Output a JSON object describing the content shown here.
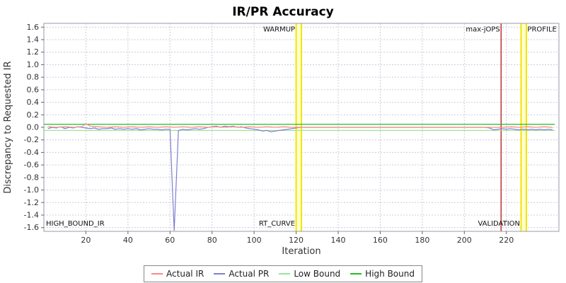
{
  "chart_data": {
    "type": "line",
    "title": "IR/PR Accuracy",
    "xlabel": "Iteration",
    "ylabel": "Discrepancy to Requested IR",
    "xlim": [
      0,
      245
    ],
    "ylim": [
      -1.66,
      1.66
    ],
    "xticks": [
      20,
      40,
      60,
      80,
      100,
      120,
      140,
      160,
      180,
      200,
      220
    ],
    "yticks": [
      1.6,
      1.4,
      1.2,
      1.0,
      0.8,
      0.6,
      0.4,
      0.2,
      0.0,
      -0.2,
      -0.4,
      -0.6,
      -0.8,
      -1.0,
      -1.2,
      -1.4,
      -1.6
    ],
    "grid": true,
    "legend_position": "bottom",
    "colors": {
      "grid": "#ccccdd",
      "plot_border": "#9999aa",
      "band_fill": "#ffffd0",
      "band_edge": "#f2e500",
      "max_jops_line": "#c03030",
      "tick_text": "#333333",
      "annotation_text": "#111111"
    },
    "series": [
      {
        "name": "Actual IR",
        "color": "#ff8888",
        "points": [
          [
            2,
            0.01
          ],
          [
            6,
            0
          ],
          [
            10,
            0.01
          ],
          [
            14,
            0
          ],
          [
            18,
            0.01
          ],
          [
            20,
            0.06
          ],
          [
            22,
            0.02
          ],
          [
            26,
            0.01
          ],
          [
            30,
            0
          ],
          [
            34,
            0.01
          ],
          [
            38,
            0
          ],
          [
            42,
            0.01
          ],
          [
            46,
            0
          ],
          [
            50,
            0.01
          ],
          [
            54,
            0
          ],
          [
            58,
            0.01
          ],
          [
            62,
            0
          ],
          [
            66,
            0.01
          ],
          [
            70,
            0
          ],
          [
            74,
            0.01
          ],
          [
            78,
            0
          ],
          [
            82,
            0.01
          ],
          [
            86,
            0
          ],
          [
            90,
            0.01
          ],
          [
            94,
            0
          ],
          [
            98,
            0.01
          ],
          [
            102,
            0
          ],
          [
            106,
            0.01
          ],
          [
            110,
            0
          ],
          [
            114,
            0.01
          ],
          [
            118,
            0
          ],
          [
            122,
            0
          ],
          [
            130,
            0
          ],
          [
            140,
            0
          ],
          [
            150,
            0
          ],
          [
            160,
            0
          ],
          [
            170,
            0
          ],
          [
            180,
            0
          ],
          [
            190,
            0
          ],
          [
            200,
            0
          ],
          [
            210,
            0
          ],
          [
            218,
            0
          ],
          [
            222,
            0.01
          ],
          [
            226,
            0
          ],
          [
            230,
            0.01
          ],
          [
            234,
            0
          ],
          [
            238,
            0.01
          ],
          [
            242,
            0
          ]
        ]
      },
      {
        "name": "Actual PR",
        "color": "#7f7fd0",
        "points": [
          [
            2,
            -0.02
          ],
          [
            4,
            0
          ],
          [
            6,
            -0.01
          ],
          [
            8,
            0.01
          ],
          [
            10,
            -0.02
          ],
          [
            12,
            0
          ],
          [
            14,
            -0.01
          ],
          [
            16,
            0.01
          ],
          [
            18,
            0
          ],
          [
            20,
            -0.01
          ],
          [
            22,
            -0.02
          ],
          [
            24,
            -0.01
          ],
          [
            26,
            -0.03
          ],
          [
            28,
            -0.02
          ],
          [
            30,
            -0.02
          ],
          [
            32,
            -0.01
          ],
          [
            34,
            -0.03
          ],
          [
            36,
            -0.02
          ],
          [
            38,
            -0.03
          ],
          [
            40,
            -0.02
          ],
          [
            42,
            -0.03
          ],
          [
            44,
            -0.02
          ],
          [
            46,
            -0.04
          ],
          [
            48,
            -0.03
          ],
          [
            50,
            -0.02
          ],
          [
            52,
            -0.03
          ],
          [
            54,
            -0.03
          ],
          [
            56,
            -0.04
          ],
          [
            58,
            -0.03
          ],
          [
            60,
            -0.03
          ],
          [
            62,
            -1.65
          ],
          [
            64,
            -0.05
          ],
          [
            66,
            -0.03
          ],
          [
            68,
            -0.04
          ],
          [
            70,
            -0.03
          ],
          [
            72,
            -0.02
          ],
          [
            74,
            -0.03
          ],
          [
            76,
            -0.02
          ],
          [
            78,
            0
          ],
          [
            80,
            0.01
          ],
          [
            82,
            0.02
          ],
          [
            84,
            0
          ],
          [
            86,
            0.02
          ],
          [
            88,
            0.01
          ],
          [
            90,
            0.02
          ],
          [
            92,
            0
          ],
          [
            94,
            0.01
          ],
          [
            96,
            -0.01
          ],
          [
            98,
            -0.02
          ],
          [
            100,
            -0.03
          ],
          [
            102,
            -0.04
          ],
          [
            104,
            -0.06
          ],
          [
            106,
            -0.05
          ],
          [
            108,
            -0.07
          ],
          [
            110,
            -0.06
          ],
          [
            112,
            -0.05
          ],
          [
            114,
            -0.04
          ],
          [
            116,
            -0.03
          ],
          [
            118,
            -0.02
          ],
          [
            120,
            -0.01
          ],
          [
            122,
            0
          ],
          [
            130,
            0
          ],
          [
            140,
            0
          ],
          [
            150,
            0
          ],
          [
            160,
            0
          ],
          [
            170,
            0
          ],
          [
            180,
            0
          ],
          [
            190,
            0
          ],
          [
            200,
            0
          ],
          [
            210,
            0
          ],
          [
            212,
            -0.01
          ],
          [
            214,
            -0.04
          ],
          [
            216,
            -0.03
          ],
          [
            218,
            -0.02
          ],
          [
            220,
            -0.03
          ],
          [
            222,
            -0.02
          ],
          [
            224,
            -0.03
          ],
          [
            226,
            -0.04
          ],
          [
            228,
            -0.03
          ],
          [
            230,
            -0.04
          ],
          [
            232,
            -0.03
          ],
          [
            234,
            -0.04
          ],
          [
            236,
            -0.03
          ],
          [
            238,
            -0.04
          ],
          [
            240,
            -0.03
          ],
          [
            242,
            -0.04
          ]
        ]
      },
      {
        "name": "Low Bound",
        "color": "#98e698",
        "points": [
          [
            0,
            -0.05
          ],
          [
            243,
            -0.05
          ]
        ]
      },
      {
        "name": "High Bound",
        "color": "#22c022",
        "points": [
          [
            0,
            0.05
          ],
          [
            243,
            0.05
          ]
        ]
      }
    ],
    "markers": {
      "bands": [
        {
          "name": "warmup-band",
          "from": 120,
          "to": 122.5
        },
        {
          "name": "validation-profile-band",
          "from": 227,
          "to": 229.5
        }
      ],
      "lines": [
        {
          "name": "max-jops-line",
          "x": 217.5
        }
      ]
    },
    "annotations": [
      {
        "name": "high-bound-ir-label",
        "text": "HIGH_BOUND_IR",
        "x": 1,
        "y": -1.57,
        "anchor": "start"
      },
      {
        "name": "warmup-label",
        "text": "WARMUP",
        "x": 119.5,
        "y": 1.53,
        "anchor": "end"
      },
      {
        "name": "rt-curve-label",
        "text": "RT_CURVE",
        "x": 119.5,
        "y": -1.57,
        "anchor": "end"
      },
      {
        "name": "max-jops-label",
        "text": "max-jOPS",
        "x": 217,
        "y": 1.53,
        "anchor": "end"
      },
      {
        "name": "validation-label",
        "text": "VALIDATION",
        "x": 226.5,
        "y": -1.57,
        "anchor": "end"
      },
      {
        "name": "profile-label",
        "text": "PROFILE",
        "x": 230,
        "y": 1.53,
        "anchor": "start"
      }
    ]
  }
}
